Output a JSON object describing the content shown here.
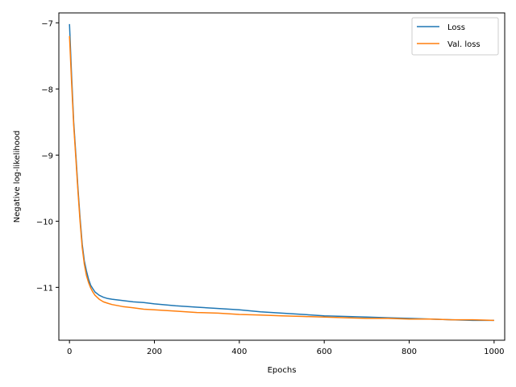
{
  "chart_data": {
    "type": "line",
    "xlabel": "Epochs",
    "ylabel": "Negative log-likelihood",
    "xlim": [
      -25,
      1025
    ],
    "ylim": [
      -11.8,
      -6.85
    ],
    "xticks": [
      0,
      200,
      400,
      600,
      800,
      1000
    ],
    "xtick_labels": [
      "0",
      "200",
      "400",
      "600",
      "800",
      "1000"
    ],
    "yticks": [
      -7,
      -8,
      -9,
      -10,
      -11
    ],
    "ytick_labels": [
      "−7",
      "−8",
      "−9",
      "−10",
      "−11"
    ],
    "legend_position": "top-right",
    "grid": false,
    "series": [
      {
        "name": "Loss",
        "color": "#1f77b4",
        "x": [
          0,
          5,
          10,
          15,
          20,
          25,
          30,
          35,
          40,
          45,
          50,
          55,
          60,
          70,
          80,
          90,
          100,
          125,
          150,
          175,
          200,
          250,
          300,
          350,
          400,
          450,
          500,
          550,
          600,
          650,
          700,
          750,
          800,
          850,
          900,
          950,
          1000
        ],
        "y": [
          -7.02,
          -7.8,
          -8.5,
          -9.0,
          -9.5,
          -9.95,
          -10.35,
          -10.6,
          -10.75,
          -10.88,
          -10.97,
          -11.02,
          -11.07,
          -11.12,
          -11.15,
          -11.17,
          -11.18,
          -11.2,
          -11.22,
          -11.23,
          -11.25,
          -11.28,
          -11.3,
          -11.32,
          -11.34,
          -11.37,
          -11.39,
          -11.41,
          -11.43,
          -11.44,
          -11.45,
          -11.46,
          -11.47,
          -11.48,
          -11.49,
          -11.5,
          -11.5
        ]
      },
      {
        "name": "Val. loss",
        "color": "#ff7f0e",
        "x": [
          0,
          5,
          10,
          15,
          20,
          25,
          30,
          35,
          40,
          45,
          50,
          55,
          60,
          70,
          80,
          90,
          100,
          125,
          150,
          175,
          200,
          250,
          300,
          350,
          400,
          450,
          500,
          550,
          600,
          650,
          700,
          750,
          800,
          850,
          900,
          950,
          1000
        ],
        "y": [
          -7.2,
          -7.9,
          -8.55,
          -9.05,
          -9.55,
          -10.0,
          -10.4,
          -10.65,
          -10.82,
          -10.93,
          -11.01,
          -11.07,
          -11.12,
          -11.18,
          -11.22,
          -11.24,
          -11.26,
          -11.29,
          -11.31,
          -11.33,
          -11.34,
          -11.36,
          -11.38,
          -11.39,
          -11.41,
          -11.42,
          -11.43,
          -11.44,
          -11.45,
          -11.46,
          -11.47,
          -11.47,
          -11.48,
          -11.48,
          -11.49,
          -11.49,
          -11.5
        ]
      }
    ]
  }
}
